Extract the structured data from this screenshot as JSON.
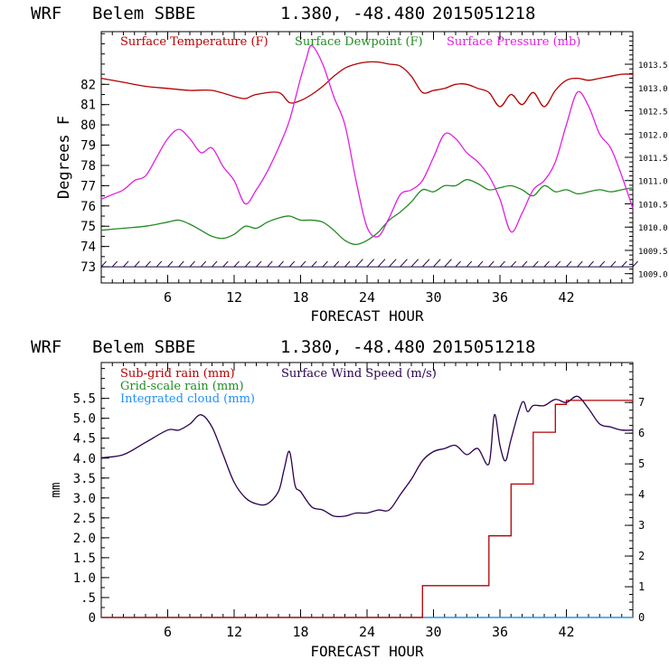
{
  "chart_data": [
    {
      "type": "line",
      "header": {
        "model": "WRF",
        "station": "Belem SBBE",
        "coords": "1.380, -48.480",
        "init": "2015051218"
      },
      "xlabel": "FORECAST HOUR",
      "ylabel": "Degrees F",
      "xlim": [
        0,
        48
      ],
      "ylim": [
        72.2,
        84.6
      ],
      "y2lim": [
        1008.8,
        1014.2
      ],
      "xticks": [
        "6",
        "12",
        "18",
        "24",
        "30",
        "36",
        "42"
      ],
      "yticks": [
        "73",
        "74",
        "75",
        "76",
        "77",
        "78",
        "79",
        "80",
        "81",
        "82"
      ],
      "y2ticks": [
        "1009.0",
        "1009.5",
        "1010.0",
        "1010.5",
        "1011.0",
        "1011.5",
        "1012.0",
        "1012.5",
        "1013.0",
        "1013.5"
      ],
      "legend_placement": "top",
      "wind_barbs_at": 73.0,
      "series": [
        {
          "name": "Surface Temperature (F)",
          "color": "#b40000",
          "axis": "left",
          "x": [
            0,
            2,
            4,
            6,
            8,
            10,
            12,
            13,
            14,
            16,
            17,
            18,
            19,
            20,
            21,
            22,
            23,
            24,
            25,
            26,
            27,
            28,
            29,
            30,
            31,
            32,
            33,
            34,
            35,
            36,
            37,
            38,
            39,
            40,
            41,
            42,
            43,
            44,
            45,
            46,
            47,
            48
          ],
          "y": [
            82.3,
            82.1,
            81.9,
            81.8,
            81.7,
            81.7,
            81.4,
            81.3,
            81.5,
            81.6,
            81.1,
            81.2,
            81.5,
            81.9,
            82.4,
            82.8,
            83.0,
            83.1,
            83.1,
            83.0,
            82.9,
            82.4,
            81.6,
            81.7,
            81.8,
            82.0,
            82.0,
            81.8,
            81.6,
            80.9,
            81.5,
            81.0,
            81.6,
            80.9,
            81.7,
            82.2,
            82.3,
            82.2,
            82.3,
            82.4,
            82.5,
            82.5
          ]
        },
        {
          "name": "Surface Dewpoint (F)",
          "color": "#228b22",
          "axis": "left",
          "x": [
            0,
            2,
            4,
            6,
            7,
            8,
            9,
            10,
            11,
            12,
            13,
            14,
            15,
            16,
            17,
            18,
            19,
            20,
            21,
            22,
            23,
            24,
            25,
            26,
            27,
            28,
            29,
            30,
            31,
            32,
            33,
            34,
            35,
            36,
            37,
            38,
            39,
            40,
            41,
            42,
            43,
            44,
            45,
            46,
            47,
            48
          ],
          "y": [
            74.8,
            74.9,
            75.0,
            75.2,
            75.3,
            75.1,
            74.8,
            74.5,
            74.4,
            74.6,
            75.0,
            74.9,
            75.2,
            75.4,
            75.5,
            75.3,
            75.3,
            75.2,
            74.8,
            74.3,
            74.1,
            74.3,
            74.7,
            75.3,
            75.7,
            76.2,
            76.8,
            76.7,
            77.0,
            77.0,
            77.3,
            77.1,
            76.8,
            76.9,
            77.0,
            76.8,
            76.5,
            77.0,
            76.7,
            76.8,
            76.6,
            76.7,
            76.8,
            76.7,
            76.8,
            76.9
          ]
        },
        {
          "name": "Surface Pressure (mb)",
          "color": "#e020e0",
          "axis": "right",
          "x": [
            0,
            1,
            2,
            3,
            4,
            5,
            6,
            7,
            8,
            9,
            10,
            11,
            12,
            13,
            14,
            15,
            16,
            17,
            18,
            18.5,
            19,
            20,
            21,
            22,
            23,
            24,
            25,
            26,
            27,
            28,
            29,
            30,
            31,
            32,
            33,
            34,
            35,
            36,
            37,
            38,
            39,
            40,
            41,
            42,
            43,
            44,
            45,
            46,
            47,
            48
          ],
          "y": [
            1010.6,
            1010.7,
            1010.8,
            1011.0,
            1011.1,
            1011.5,
            1011.9,
            1012.1,
            1011.9,
            1011.6,
            1011.7,
            1011.3,
            1011.0,
            1010.5,
            1010.8,
            1011.2,
            1011.7,
            1012.3,
            1013.2,
            1013.6,
            1013.9,
            1013.5,
            1012.8,
            1012.2,
            1011.0,
            1010.0,
            1009.8,
            1010.2,
            1010.7,
            1010.8,
            1011.0,
            1011.5,
            1012.0,
            1011.9,
            1011.6,
            1011.4,
            1011.1,
            1010.6,
            1009.9,
            1010.3,
            1010.8,
            1011.0,
            1011.4,
            1012.2,
            1012.9,
            1012.6,
            1012.0,
            1011.7,
            1011.1,
            1010.4
          ]
        }
      ]
    },
    {
      "type": "line",
      "header": {
        "model": "WRF",
        "station": "Belem SBBE",
        "coords": "1.380, -48.480",
        "init": "2015051218"
      },
      "xlabel": "FORECAST HOUR",
      "ylabel": "mm",
      "xlim": [
        0,
        48
      ],
      "ylim": [
        0,
        6.4
      ],
      "y2lim": [
        0,
        8.3
      ],
      "xticks": [
        "6",
        "12",
        "18",
        "24",
        "30",
        "36",
        "42"
      ],
      "yticks": [
        "0",
        ".5",
        "1.0",
        "1.5",
        "2.0",
        "2.5",
        "3.0",
        "3.5",
        "4.0",
        "4.5",
        "5.0",
        "5.5"
      ],
      "y2ticks": [
        "0",
        "1",
        "2",
        "3",
        "4",
        "5",
        "6",
        "7"
      ],
      "legend_placement": "top-left",
      "series": [
        {
          "name": "Sub-grid rain (mm)",
          "color": "#b40000",
          "axis": "left",
          "style": "step",
          "x": [
            0,
            29,
            29,
            35,
            35,
            37,
            37,
            39,
            39,
            41,
            41,
            42,
            42,
            48
          ],
          "y": [
            0,
            0,
            0.8,
            0.8,
            2.05,
            2.05,
            3.35,
            3.35,
            4.65,
            4.65,
            5.35,
            5.35,
            5.45,
            5.45
          ]
        },
        {
          "name": "Grid-scale rain (mm)",
          "color": "#228b22",
          "axis": "left",
          "x": [
            0,
            48
          ],
          "y": [
            0,
            0
          ]
        },
        {
          "name": "Integrated cloud (mm)",
          "color": "#1e90ff",
          "axis": "left",
          "x": [
            0,
            48
          ],
          "y": [
            0,
            0
          ]
        },
        {
          "name": "Surface Wind Speed (m/s)",
          "color": "#2a0050",
          "axis": "right",
          "x": [
            0,
            2,
            4,
            6,
            7,
            8,
            9,
            10,
            11,
            12,
            13,
            14,
            15,
            16,
            16.5,
            17,
            17.5,
            18,
            19,
            20,
            21,
            22,
            23,
            24,
            25,
            26,
            27,
            28,
            29,
            30,
            31,
            32,
            33,
            34,
            35,
            35.5,
            36,
            36.5,
            37,
            38,
            38.5,
            39,
            40,
            41,
            42,
            43,
            44,
            45,
            46,
            47,
            48
          ],
          "y": [
            5.2,
            5.3,
            5.7,
            6.1,
            6.1,
            6.3,
            6.6,
            6.2,
            5.3,
            4.4,
            3.9,
            3.7,
            3.7,
            4.1,
            4.8,
            5.4,
            4.3,
            4.1,
            3.6,
            3.5,
            3.3,
            3.3,
            3.4,
            3.4,
            3.5,
            3.5,
            4.0,
            4.5,
            5.1,
            5.4,
            5.5,
            5.6,
            5.3,
            5.5,
            5.0,
            6.6,
            5.6,
            5.1,
            5.8,
            7.0,
            6.7,
            6.9,
            6.9,
            7.1,
            7.0,
            7.2,
            6.8,
            6.3,
            6.2,
            6.1,
            6.1
          ]
        }
      ]
    }
  ]
}
